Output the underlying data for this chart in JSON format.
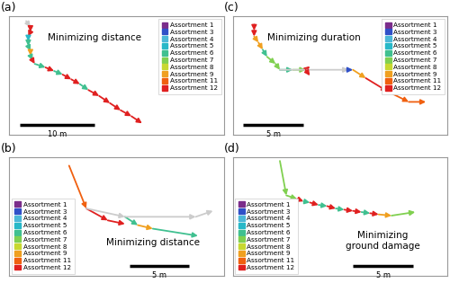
{
  "assortment_colors": {
    "1": "#7B2D8B",
    "3": "#3050C8",
    "4": "#4CB8D8",
    "5": "#28B8C8",
    "6": "#40C090",
    "7": "#80D050",
    "8": "#C8D830",
    "9": "#F0A020",
    "11": "#F06010",
    "12": "#E02020"
  },
  "legend_assortments": [
    "1",
    "3",
    "4",
    "5",
    "6",
    "7",
    "8",
    "9",
    "11",
    "12"
  ],
  "panel_labels": [
    "(a)",
    "(b)",
    "(c)",
    "(d)"
  ],
  "routes_a": [
    {
      "x": [
        0.08,
        0.1
      ],
      "y": [
        0.96,
        0.91
      ],
      "color": "gray"
    },
    {
      "x": [
        0.1,
        0.1
      ],
      "y": [
        0.91,
        0.87
      ],
      "color": "12"
    },
    {
      "x": [
        0.1,
        0.09
      ],
      "y": [
        0.87,
        0.83
      ],
      "color": "12"
    },
    {
      "x": [
        0.09,
        0.09
      ],
      "y": [
        0.83,
        0.79
      ],
      "color": "5"
    },
    {
      "x": [
        0.09,
        0.09
      ],
      "y": [
        0.79,
        0.75
      ],
      "color": "6"
    },
    {
      "x": [
        0.09,
        0.1
      ],
      "y": [
        0.75,
        0.71
      ],
      "color": "6"
    },
    {
      "x": [
        0.1,
        0.1
      ],
      "y": [
        0.71,
        0.67
      ],
      "color": "9"
    },
    {
      "x": [
        0.1,
        0.11
      ],
      "y": [
        0.67,
        0.63
      ],
      "color": "6"
    },
    {
      "x": [
        0.11,
        0.12
      ],
      "y": [
        0.63,
        0.6
      ],
      "color": "12"
    },
    {
      "x": [
        0.12,
        0.17
      ],
      "y": [
        0.6,
        0.57
      ],
      "color": "6"
    },
    {
      "x": [
        0.17,
        0.21
      ],
      "y": [
        0.57,
        0.54
      ],
      "color": "12"
    },
    {
      "x": [
        0.21,
        0.25
      ],
      "y": [
        0.54,
        0.51
      ],
      "color": "6"
    },
    {
      "x": [
        0.25,
        0.29
      ],
      "y": [
        0.51,
        0.47
      ],
      "color": "12"
    },
    {
      "x": [
        0.29,
        0.33
      ],
      "y": [
        0.47,
        0.43
      ],
      "color": "12"
    },
    {
      "x": [
        0.33,
        0.37
      ],
      "y": [
        0.43,
        0.38
      ],
      "color": "6"
    },
    {
      "x": [
        0.37,
        0.42
      ],
      "y": [
        0.38,
        0.33
      ],
      "color": "12"
    },
    {
      "x": [
        0.42,
        0.47
      ],
      "y": [
        0.33,
        0.27
      ],
      "color": "12"
    },
    {
      "x": [
        0.47,
        0.52
      ],
      "y": [
        0.27,
        0.21
      ],
      "color": "12"
    },
    {
      "x": [
        0.52,
        0.57
      ],
      "y": [
        0.21,
        0.16
      ],
      "color": "12"
    },
    {
      "x": [
        0.57,
        0.62
      ],
      "y": [
        0.16,
        0.1
      ],
      "color": "12"
    }
  ],
  "routes_b": [
    {
      "x": [
        0.28,
        0.36
      ],
      "y": [
        0.93,
        0.57
      ],
      "color": "11"
    },
    {
      "x": [
        0.36,
        0.46
      ],
      "y": [
        0.57,
        0.47
      ],
      "color": "12"
    },
    {
      "x": [
        0.46,
        0.54
      ],
      "y": [
        0.47,
        0.44
      ],
      "color": "12"
    },
    {
      "x": [
        0.36,
        0.54
      ],
      "y": [
        0.57,
        0.5
      ],
      "color": "gray"
    },
    {
      "x": [
        0.54,
        0.6
      ],
      "y": [
        0.5,
        0.43
      ],
      "color": "6"
    },
    {
      "x": [
        0.6,
        0.67
      ],
      "y": [
        0.43,
        0.4
      ],
      "color": "9"
    },
    {
      "x": [
        0.54,
        0.87
      ],
      "y": [
        0.5,
        0.5
      ],
      "color": "gray"
    },
    {
      "x": [
        0.87,
        0.95
      ],
      "y": [
        0.5,
        0.55
      ],
      "color": "gray"
    },
    {
      "x": [
        0.67,
        0.88
      ],
      "y": [
        0.4,
        0.34
      ],
      "color": "6"
    }
  ],
  "routes_c": [
    {
      "x": [
        0.1,
        0.1
      ],
      "y": [
        0.93,
        0.88
      ],
      "color": "12"
    },
    {
      "x": [
        0.1,
        0.1
      ],
      "y": [
        0.88,
        0.83
      ],
      "color": "12"
    },
    {
      "x": [
        0.1,
        0.12
      ],
      "y": [
        0.83,
        0.78
      ],
      "color": "9"
    },
    {
      "x": [
        0.12,
        0.14
      ],
      "y": [
        0.78,
        0.72
      ],
      "color": "9"
    },
    {
      "x": [
        0.14,
        0.16
      ],
      "y": [
        0.72,
        0.66
      ],
      "color": "6"
    },
    {
      "x": [
        0.16,
        0.2
      ],
      "y": [
        0.66,
        0.6
      ],
      "color": "7"
    },
    {
      "x": [
        0.2,
        0.22
      ],
      "y": [
        0.6,
        0.55
      ],
      "color": "7"
    },
    {
      "x": [
        0.22,
        0.28
      ],
      "y": [
        0.55,
        0.55
      ],
      "color": "6"
    },
    {
      "x": [
        0.28,
        0.34
      ],
      "y": [
        0.55,
        0.55
      ],
      "color": "7"
    },
    {
      "x": [
        0.34,
        0.36
      ],
      "y": [
        0.55,
        0.58
      ],
      "color": "12"
    },
    {
      "x": [
        0.22,
        0.54
      ],
      "y": [
        0.55,
        0.55
      ],
      "color": "gray"
    },
    {
      "x": [
        0.54,
        0.56
      ],
      "y": [
        0.55,
        0.55
      ],
      "color": "3"
    },
    {
      "x": [
        0.34,
        0.36
      ],
      "y": [
        0.55,
        0.5
      ],
      "color": "12"
    },
    {
      "x": [
        0.56,
        0.62
      ],
      "y": [
        0.55,
        0.48
      ],
      "color": "9"
    },
    {
      "x": [
        0.62,
        0.72
      ],
      "y": [
        0.48,
        0.37
      ],
      "color": "12"
    },
    {
      "x": [
        0.72,
        0.82
      ],
      "y": [
        0.37,
        0.28
      ],
      "color": "11"
    },
    {
      "x": [
        0.82,
        0.9
      ],
      "y": [
        0.28,
        0.28
      ],
      "color": "11"
    }
  ],
  "routes_d": [
    {
      "x": [
        0.22,
        0.25
      ],
      "y": [
        0.97,
        0.68
      ],
      "color": "7"
    },
    {
      "x": [
        0.25,
        0.3
      ],
      "y": [
        0.68,
        0.65
      ],
      "color": "7"
    },
    {
      "x": [
        0.3,
        0.33
      ],
      "y": [
        0.65,
        0.63
      ],
      "color": "12"
    },
    {
      "x": [
        0.33,
        0.36
      ],
      "y": [
        0.63,
        0.62
      ],
      "color": "6"
    },
    {
      "x": [
        0.36,
        0.4
      ],
      "y": [
        0.62,
        0.6
      ],
      "color": "12"
    },
    {
      "x": [
        0.4,
        0.44
      ],
      "y": [
        0.6,
        0.59
      ],
      "color": "6"
    },
    {
      "x": [
        0.44,
        0.48
      ],
      "y": [
        0.59,
        0.57
      ],
      "color": "12"
    },
    {
      "x": [
        0.48,
        0.52
      ],
      "y": [
        0.57,
        0.56
      ],
      "color": "6"
    },
    {
      "x": [
        0.52,
        0.56
      ],
      "y": [
        0.56,
        0.55
      ],
      "color": "12"
    },
    {
      "x": [
        0.56,
        0.6
      ],
      "y": [
        0.55,
        0.54
      ],
      "color": "12"
    },
    {
      "x": [
        0.6,
        0.64
      ],
      "y": [
        0.54,
        0.53
      ],
      "color": "6"
    },
    {
      "x": [
        0.64,
        0.68
      ],
      "y": [
        0.53,
        0.52
      ],
      "color": "12"
    },
    {
      "x": [
        0.68,
        0.74
      ],
      "y": [
        0.52,
        0.51
      ],
      "color": "9"
    },
    {
      "x": [
        0.74,
        0.85
      ],
      "y": [
        0.51,
        0.54
      ],
      "color": "7"
    }
  ],
  "bg_color": "#ffffff"
}
